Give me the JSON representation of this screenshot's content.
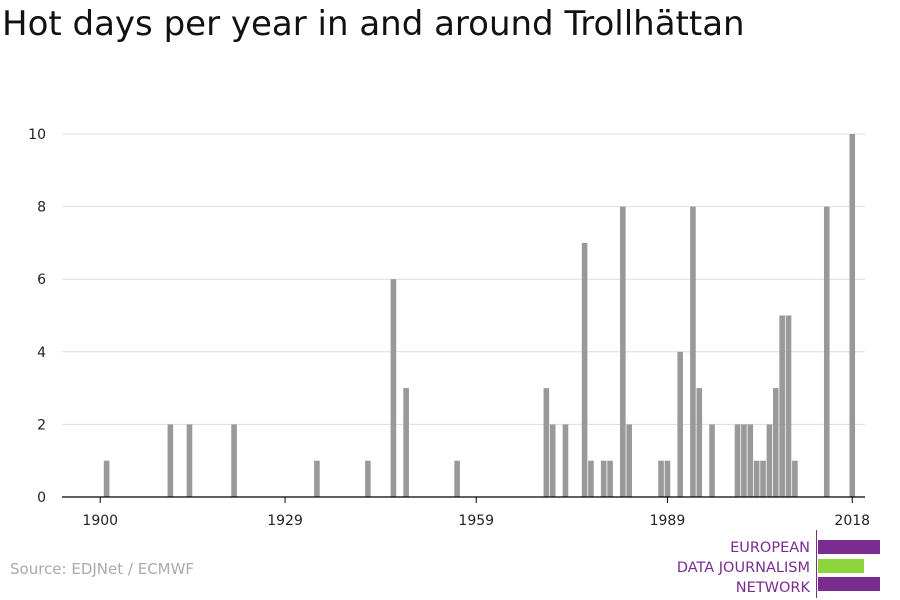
{
  "title": "Hot days per year in and around Trollhättan",
  "source": "Source: EDJNet / ECMWF",
  "logo": {
    "lines": [
      "EUROPEAN",
      "DATA JOURNALISM",
      "NETWORK"
    ],
    "colors": {
      "purple": "#7b2c91",
      "green": "#8cd43a"
    }
  },
  "colors": {
    "bar": "#999999",
    "grid": "#dddddd",
    "axis": "#000000",
    "text": "#222222"
  },
  "chart_data": {
    "type": "bar",
    "title": "Hot days per year in and around Trollhättan",
    "xlabel": "",
    "ylabel": "",
    "ylim": [
      0,
      10
    ],
    "yticks": [
      0,
      2,
      4,
      6,
      8,
      10
    ],
    "xlim": [
      1894,
      2020
    ],
    "xticks": [
      1900,
      1929,
      1959,
      1989,
      2018
    ],
    "grid": true,
    "legend": "none",
    "x": [
      1901,
      1911,
      1914,
      1921,
      1934,
      1942,
      1946,
      1948,
      1956,
      1970,
      1971,
      1973,
      1976,
      1977,
      1979,
      1980,
      1982,
      1983,
      1988,
      1989,
      1991,
      1993,
      1994,
      1996,
      2000,
      2001,
      2002,
      2003,
      2004,
      2005,
      2006,
      2007,
      2008,
      2009,
      2010,
      2014,
      2018
    ],
    "values": [
      1,
      2,
      2,
      2,
      1,
      1,
      6,
      3,
      1,
      3,
      2,
      2,
      7,
      1,
      1,
      1,
      8,
      2,
      1,
      1,
      4,
      8,
      3,
      2,
      2,
      2,
      2,
      1,
      1,
      2,
      3,
      5,
      5,
      1,
      0,
      8,
      10
    ]
  }
}
